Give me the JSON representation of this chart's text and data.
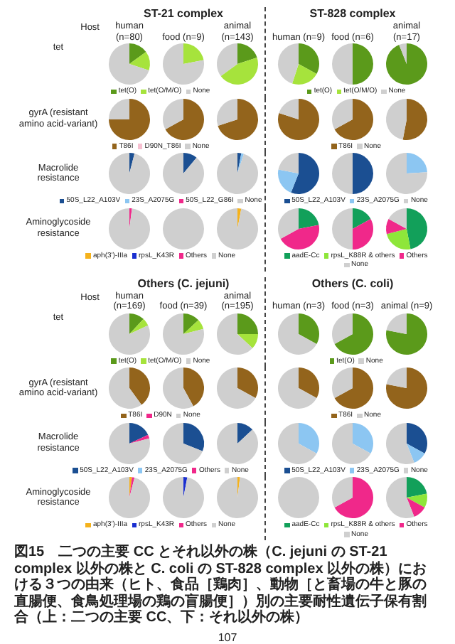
{
  "chart_data": [
    {
      "type": "pie",
      "title": "ST-21 complex",
      "ylabel": "tet",
      "annotations": [
        "Host"
      ],
      "legend": "bottom",
      "categories": [
        "tet(O)",
        "tet(O/M/O)",
        "None"
      ],
      "colors": [
        "#5b9a1b",
        "#a6e33c",
        "#cfcfcf"
      ],
      "series": [
        {
          "name": "human (n=80)",
          "values": [
            15,
            15,
            70
          ]
        },
        {
          "name": "food (n=9)",
          "values": [
            0,
            22,
            78
          ]
        },
        {
          "name": "animal (n=143)",
          "values": [
            20,
            45,
            35
          ]
        }
      ]
    },
    {
      "type": "pie",
      "title": "ST-828 complex",
      "legend": "bottom",
      "categories": [
        "tet(O)",
        "tet(O/M/O)",
        "None"
      ],
      "colors": [
        "#5b9a1b",
        "#a6e33c",
        "#cfcfcf"
      ],
      "series": [
        {
          "name": "human (n=9)",
          "values": [
            33,
            22,
            45
          ]
        },
        {
          "name": "food (n=6)",
          "values": [
            50,
            0,
            50
          ]
        },
        {
          "name": "animal (n=17)",
          "values": [
            94,
            0,
            6
          ]
        }
      ]
    },
    {
      "type": "pie",
      "ylabel": "gyrA (resistant amino acid-variant)",
      "legend": "bottom",
      "categories": [
        "T86I",
        "D90N_T86I",
        "None"
      ],
      "colors": [
        "#93641c",
        "#f6bfd0",
        "#cfcfcf"
      ],
      "series": [
        {
          "values": [
            75,
            0,
            25
          ]
        },
        {
          "values": [
            67,
            0,
            33
          ]
        },
        {
          "values": [
            70,
            0,
            30
          ]
        }
      ]
    },
    {
      "type": "pie",
      "legend": "bottom",
      "categories": [
        "T86I",
        "None"
      ],
      "colors": [
        "#93641c",
        "#cfcfcf"
      ],
      "series": [
        {
          "values": [
            80,
            20
          ]
        },
        {
          "values": [
            67,
            33
          ]
        },
        {
          "values": [
            53,
            47
          ]
        }
      ]
    },
    {
      "type": "pie",
      "ylabel": "Macrolide resistance",
      "legend": "bottom",
      "categories": [
        "50S_L22_A103V",
        "23S_A2075G",
        "50S_L22_G86I",
        "None"
      ],
      "colors": [
        "#1b4f92",
        "#8cc6f2",
        "#f0288a",
        "#cfcfcf"
      ],
      "series": [
        {
          "values": [
            4,
            0,
            0,
            96
          ]
        },
        {
          "values": [
            11,
            0,
            0,
            89
          ]
        },
        {
          "values": [
            3,
            2,
            0,
            95
          ]
        }
      ]
    },
    {
      "type": "pie",
      "legend": "bottom",
      "categories": [
        "50S_L22_A103V",
        "23S_A2075G",
        "None"
      ],
      "colors": [
        "#1b4f92",
        "#8cc6f2",
        "#cfcfcf"
      ],
      "series": [
        {
          "values": [
            56,
            22,
            22
          ]
        },
        {
          "values": [
            50,
            0,
            50
          ]
        },
        {
          "values": [
            0,
            24,
            76
          ]
        }
      ]
    },
    {
      "type": "pie",
      "ylabel": "Aminoglycoside resistance",
      "legend": "bottom",
      "categories": [
        "aph(3')-IIIa",
        "rpsL_K43R",
        "Others",
        "None"
      ],
      "colors": [
        "#f5b21c",
        "#1a2fd0",
        "#f0288a",
        "#cfcfcf"
      ],
      "series": [
        {
          "values": [
            0,
            0,
            2,
            98
          ]
        },
        {
          "values": [
            0,
            0,
            0,
            100
          ]
        },
        {
          "values": [
            3,
            0,
            0,
            97
          ]
        }
      ]
    },
    {
      "type": "pie",
      "legend": "bottom",
      "categories": [
        "aadE-Cc",
        "rpsL_K88R & others",
        "Others",
        "None"
      ],
      "colors": [
        "#12a05a",
        "#8ee63a",
        "#f0288a",
        "#cfcfcf"
      ],
      "series": [
        {
          "values": [
            22,
            0,
            45,
            33
          ]
        },
        {
          "values": [
            17,
            0,
            33,
            50
          ]
        },
        {
          "values": [
            47,
            24,
            12,
            17
          ]
        }
      ]
    },
    {
      "type": "pie",
      "title": "Others (C. jejuni)",
      "ylabel": "tet",
      "annotations": [
        "Host"
      ],
      "legend": "bottom",
      "categories": [
        "tet(O)",
        "tet(O/M/O)",
        "None"
      ],
      "colors": [
        "#5b9a1b",
        "#a6e33c",
        "#cfcfcf"
      ],
      "series": [
        {
          "name": "human (n=169)",
          "values": [
            12,
            6,
            82
          ]
        },
        {
          "name": "food (n=39)",
          "values": [
            13,
            8,
            79
          ]
        },
        {
          "name": "animal (n=195)",
          "values": [
            25,
            12,
            63
          ]
        }
      ]
    },
    {
      "type": "pie",
      "title": "Others (C. coli)",
      "legend": "bottom",
      "categories": [
        "tet(O)",
        "None"
      ],
      "colors": [
        "#5b9a1b",
        "#cfcfcf"
      ],
      "series": [
        {
          "name": "human (n=3)",
          "values": [
            33,
            67
          ]
        },
        {
          "name": "food (n=3)",
          "values": [
            67,
            33
          ]
        },
        {
          "name": "animal (n=9)",
          "values": [
            78,
            22
          ]
        }
      ]
    },
    {
      "type": "pie",
      "ylabel": "gyrA (resistant amino acid-variant)",
      "legend": "bottom",
      "categories": [
        "T86I",
        "D90N",
        "None"
      ],
      "colors": [
        "#93641c",
        "#f0288a",
        "#cfcfcf"
      ],
      "series": [
        {
          "values": [
            40,
            0,
            60
          ]
        },
        {
          "values": [
            42,
            0,
            58
          ]
        },
        {
          "values": [
            33,
            0,
            67
          ]
        }
      ]
    },
    {
      "type": "pie",
      "legend": "bottom",
      "categories": [
        "T86I",
        "None"
      ],
      "colors": [
        "#93641c",
        "#cfcfcf"
      ],
      "series": [
        {
          "values": [
            33,
            67
          ]
        },
        {
          "values": [
            67,
            33
          ]
        },
        {
          "values": [
            78,
            22
          ]
        }
      ]
    },
    {
      "type": "pie",
      "ylabel": "Macrolide resistance",
      "legend": "bottom",
      "categories": [
        "50S_L22_A103V",
        "23S_A2075G",
        "Others",
        "None"
      ],
      "colors": [
        "#1b4f92",
        "#8cc6f2",
        "#f0288a",
        "#cfcfcf"
      ],
      "series": [
        {
          "values": [
            18,
            0,
            3,
            79
          ]
        },
        {
          "values": [
            31,
            0,
            0,
            69
          ]
        },
        {
          "values": [
            13,
            0,
            0,
            87
          ]
        }
      ]
    },
    {
      "type": "pie",
      "legend": "bottom",
      "categories": [
        "50S_L22_A103V",
        "23S_A2075G",
        "None"
      ],
      "colors": [
        "#1b4f92",
        "#8cc6f2",
        "#cfcfcf"
      ],
      "series": [
        {
          "values": [
            0,
            33,
            67
          ]
        },
        {
          "values": [
            0,
            33,
            67
          ]
        },
        {
          "values": [
            33,
            11,
            56
          ]
        }
      ]
    },
    {
      "type": "pie",
      "ylabel": "Aminoglycoside resistance",
      "legend": "bottom",
      "categories": [
        "aph(3')-IIIa",
        "rpsL_K43R",
        "Others",
        "None"
      ],
      "colors": [
        "#f5b21c",
        "#1a2fd0",
        "#f0288a",
        "#cfcfcf"
      ],
      "series": [
        {
          "values": [
            2,
            0,
            2,
            96
          ]
        },
        {
          "values": [
            0,
            3,
            0,
            97
          ]
        },
        {
          "values": [
            2,
            0,
            0,
            98
          ]
        }
      ]
    },
    {
      "type": "pie",
      "legend": "bottom",
      "categories": [
        "aadE-Cc",
        "rpsL_K88R & others",
        "Others",
        "None"
      ],
      "colors": [
        "#12a05a",
        "#8ee63a",
        "#f0288a",
        "#cfcfcf"
      ],
      "series": [
        {
          "values": [
            0,
            0,
            0,
            100
          ]
        },
        {
          "values": [
            0,
            0,
            67,
            33
          ]
        },
        {
          "values": [
            22,
            11,
            11,
            56
          ]
        }
      ]
    },
    {
      "type": "other",
      "annotations": [
        "図15　二つの主要 CC とそれ以外の株（C. jejuni の ST-21 complex 以外の株と C. coli の ST-828 complex 以外の株）における３つの由来（ヒト、食品［鶏肉］、動物［と畜場の牛と豚の直腸便、食鳥処理場の鶏の盲腸便］）別の主要耐性遺伝子保有割合（上：二つの主要 CC、下：それ以外の株）",
        "107"
      ]
    }
  ]
}
